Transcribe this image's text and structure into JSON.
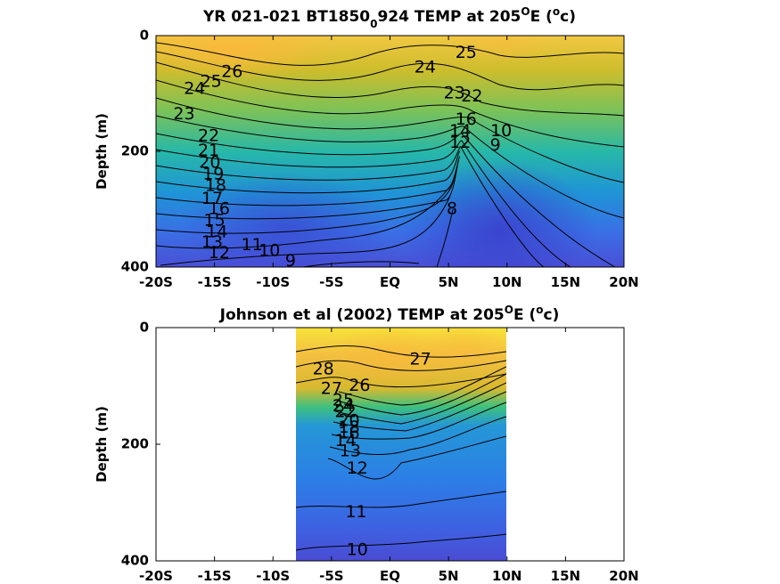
{
  "chart_data": [
    {
      "type": "contour",
      "title": {
        "prefix": "YR 021-021 BT1850",
        "sub": "0",
        "mid": "924 TEMP at 205",
        "sup1": "O",
        "mid2": "E (",
        "sup2": "o",
        "suffix": "c)"
      },
      "ylabel": "Depth (m)",
      "x_ticks": [
        "-20S",
        "-15S",
        "-10S",
        "-5S",
        "EQ",
        "5N",
        "10N",
        "15N",
        "20N"
      ],
      "y_ticks": [
        "0",
        "200",
        "400"
      ],
      "xlim": [
        -20,
        20
      ],
      "ylim": [
        0,
        400
      ],
      "y_reversed": true,
      "data_extent": [
        -20,
        20
      ],
      "colormap": "parula",
      "contour_interval": 1,
      "contour_labels": [
        {
          "text": "26",
          "x": -13.5,
          "y": 63
        },
        {
          "text": "25",
          "x": -15.3,
          "y": 80
        },
        {
          "text": "24",
          "x": -16.7,
          "y": 92
        },
        {
          "text": "23",
          "x": -17.6,
          "y": 136
        },
        {
          "text": "22",
          "x": -15.5,
          "y": 174
        },
        {
          "text": "21",
          "x": -15.5,
          "y": 199
        },
        {
          "text": "20",
          "x": -15.4,
          "y": 220
        },
        {
          "text": "19",
          "x": -15.1,
          "y": 240
        },
        {
          "text": "18",
          "x": -14.9,
          "y": 260
        },
        {
          "text": "17",
          "x": -15.2,
          "y": 282
        },
        {
          "text": "16",
          "x": -14.6,
          "y": 300
        },
        {
          "text": "15",
          "x": -15.0,
          "y": 320
        },
        {
          "text": "14",
          "x": -14.8,
          "y": 340
        },
        {
          "text": "13",
          "x": -15.2,
          "y": 358
        },
        {
          "text": "12",
          "x": -14.6,
          "y": 376
        },
        {
          "text": "11",
          "x": -11.8,
          "y": 362
        },
        {
          "text": "10",
          "x": -10.3,
          "y": 372
        },
        {
          "text": "9",
          "x": -8.5,
          "y": 390
        },
        {
          "text": "25",
          "x": 6.5,
          "y": 30
        },
        {
          "text": "24",
          "x": 3.0,
          "y": 55
        },
        {
          "text": "23",
          "x": 5.5,
          "y": 100
        },
        {
          "text": "22",
          "x": 7.0,
          "y": 105
        },
        {
          "text": "16",
          "x": 6.5,
          "y": 145
        },
        {
          "text": "14",
          "x": 6.0,
          "y": 165
        },
        {
          "text": "12",
          "x": 6.0,
          "y": 185
        },
        {
          "text": "10",
          "x": 9.5,
          "y": 165
        },
        {
          "text": "9",
          "x": 9.0,
          "y": 190
        },
        {
          "text": "8",
          "x": 5.3,
          "y": 300
        }
      ]
    },
    {
      "type": "contour",
      "title": {
        "prefix": "Johnson et al (2002) TEMP at 205",
        "sup1": "O",
        "mid2": "E (",
        "sup2": "o",
        "suffix": "c)"
      },
      "ylabel": "Depth (m)",
      "x_ticks": [
        "-20S",
        "-15S",
        "-10S",
        "-5S",
        "EQ",
        "5N",
        "10N",
        "15N",
        "20N"
      ],
      "y_ticks": [
        "0",
        "200",
        "400"
      ],
      "xlim": [
        -20,
        20
      ],
      "ylim": [
        0,
        400
      ],
      "y_reversed": true,
      "data_extent": [
        -8,
        10
      ],
      "colormap": "parula",
      "contour_interval": 1,
      "contour_labels": [
        {
          "text": "28",
          "x": -5.7,
          "y": 72
        },
        {
          "text": "27",
          "x": 2.6,
          "y": 55
        },
        {
          "text": "27",
          "x": -5.0,
          "y": 105
        },
        {
          "text": "26",
          "x": -2.6,
          "y": 100
        },
        {
          "text": "25",
          "x": -4.0,
          "y": 125
        },
        {
          "text": "24",
          "x": -4.0,
          "y": 135
        },
        {
          "text": "22",
          "x": -3.8,
          "y": 145
        },
        {
          "text": "20",
          "x": -3.5,
          "y": 160
        },
        {
          "text": "18",
          "x": -3.5,
          "y": 172
        },
        {
          "text": "16",
          "x": -3.5,
          "y": 182
        },
        {
          "text": "14",
          "x": -3.8,
          "y": 195
        },
        {
          "text": "13",
          "x": -3.4,
          "y": 212
        },
        {
          "text": "12",
          "x": -2.8,
          "y": 242
        },
        {
          "text": "11",
          "x": -2.9,
          "y": 317
        },
        {
          "text": "10",
          "x": -2.8,
          "y": 382
        }
      ]
    }
  ]
}
